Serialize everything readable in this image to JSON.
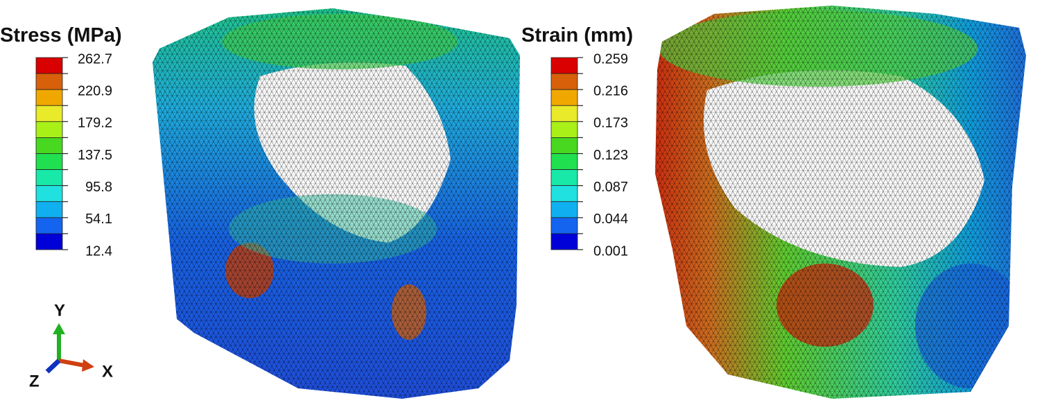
{
  "stress_legend": {
    "title": "Stress (MPa)",
    "labels": [
      "262.7",
      "220.9",
      "179.2",
      "137.5",
      "95.8",
      "54.1",
      "12.4"
    ],
    "colors": [
      "#d80000",
      "#d8600a",
      "#f0a800",
      "#e8ea2a",
      "#a8f018",
      "#48d820",
      "#20e050",
      "#18e8a8",
      "#20e0e0",
      "#10b0f0",
      "#1464f0",
      "#0000d8"
    ]
  },
  "strain_legend": {
    "title": "Strain (mm)",
    "labels": [
      "0.259",
      "0.216",
      "0.173",
      "0.123",
      "0.087",
      "0.044",
      "0.001"
    ],
    "colors": [
      "#d80000",
      "#d8600a",
      "#f0a800",
      "#e8ea2a",
      "#a8f018",
      "#48d820",
      "#20e050",
      "#18e8a8",
      "#20e0e0",
      "#10b0f0",
      "#1464f0",
      "#0000d8"
    ]
  },
  "axis_triad": {
    "y": "Y",
    "x": "X",
    "z": "Z"
  }
}
